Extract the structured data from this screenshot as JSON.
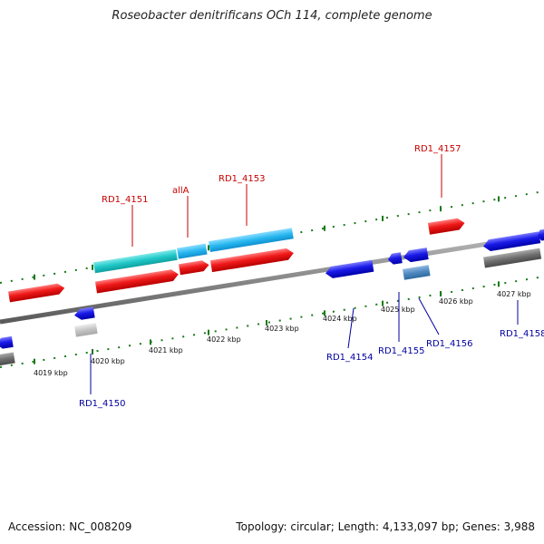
{
  "title": "Roseobacter denitrificans OCh 114, complete genome",
  "footer": {
    "accession": "Accession: NC_008209",
    "summary": "Topology: circular; Length: 4,133,097 bp; Genes: 3,988"
  },
  "colors": {
    "forward_cds": "#e8141e",
    "reverse_cds": "#1414d8",
    "teal_feature": "#20c8c8",
    "cyan_feature": "#28b8f0",
    "grey_feature": "#6e6e6e",
    "light_grey_feature": "#c4c4c4",
    "tick_green": "#1a7a1a",
    "forward_label": "#c80000",
    "reverse_label": "#0000a0"
  },
  "scale_labels": [
    "4019 kbp",
    "4020 kbp",
    "4021 kbp",
    "4022 kbp",
    "4023 kbp",
    "4024 kbp",
    "4025 kbp",
    "4026 kbp",
    "4027 kbp"
  ],
  "gene_labels": {
    "forward": [
      "RD1_4151",
      "allA",
      "RD1_4153",
      "RD1_4157"
    ],
    "reverse": [
      "RD1_4150",
      "RD1_4154",
      "RD1_4155",
      "RD1_4156",
      "RD1_4158"
    ]
  }
}
